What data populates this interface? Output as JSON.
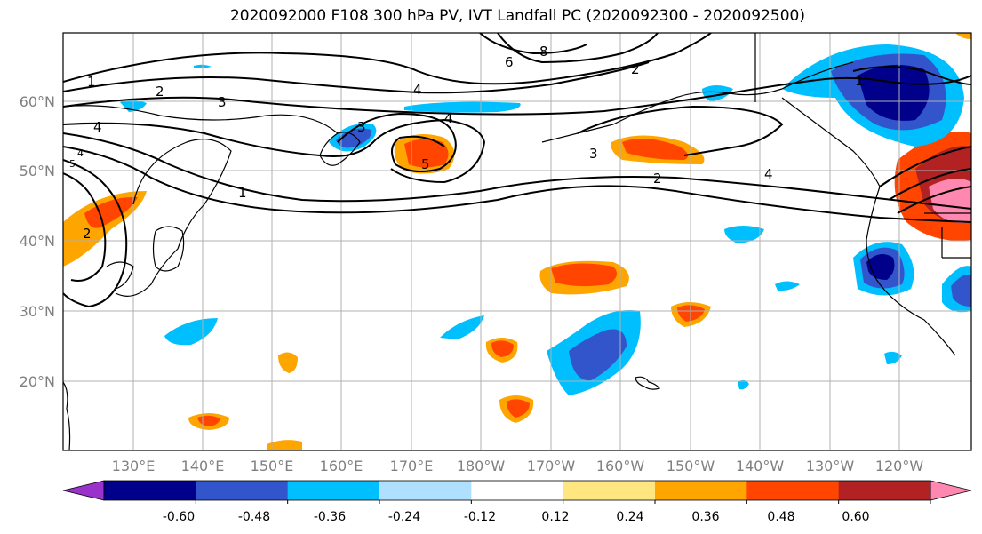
{
  "title": "2020092000 F108 300 hPa PV, IVT Landfall PC (2020092300 - 2020092500)",
  "lon_labels": [
    "130°E",
    "140°E",
    "150°E",
    "160°E",
    "170°E",
    "180°W",
    "170°W",
    "160°W",
    "150°W",
    "140°W",
    "130°W",
    "120°W"
  ],
  "lat_labels": [
    "60°N",
    "50°N",
    "40°N",
    "30°N",
    "20°N"
  ],
  "contour_labels": [
    "1",
    "2",
    "3",
    "4",
    "4",
    "4",
    "5",
    "8",
    "6",
    "2",
    "3",
    "2",
    "4",
    "1",
    "1",
    "2",
    "3",
    "4",
    "5"
  ],
  "colorbar": {
    "tick_labels": [
      "-0.60",
      "-0.48",
      "-0.36",
      "-0.24",
      "-0.12",
      "0.12",
      "0.24",
      "0.36",
      "0.48",
      "0.60"
    ],
    "colors": [
      "#9933cc",
      "#00008b",
      "#3355cc",
      "#00bfff",
      "#b0e0ff",
      "#ffffff",
      "#ffe680",
      "#ffa500",
      "#ff4500",
      "#b22222",
      "#ff88b0"
    ]
  }
}
